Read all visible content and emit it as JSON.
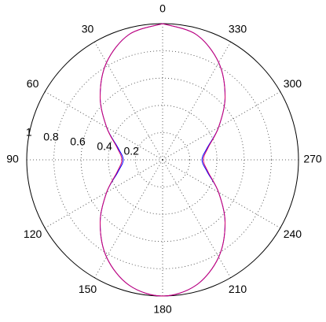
{
  "chart_data": {
    "type": "polar",
    "theta": [
      0,
      15,
      30,
      45,
      60,
      75,
      90,
      105,
      120,
      135,
      150,
      165,
      180,
      195,
      210,
      225,
      240,
      255,
      270,
      285,
      300,
      315,
      330,
      345,
      360
    ],
    "series": [
      {
        "color": "#0000ff",
        "values": [
          1,
          0.953,
          0.825,
          0.65,
          0.475,
          0.34,
          0.29,
          0.34,
          0.475,
          0.65,
          0.825,
          0.953,
          1,
          0.953,
          0.825,
          0.65,
          0.475,
          0.34,
          0.29,
          0.34,
          0.475,
          0.65,
          0.825,
          0.953,
          1
        ]
      },
      {
        "color": "#d4006e",
        "values": [
          1,
          0.953,
          0.825,
          0.65,
          0.475,
          0.347,
          0.3,
          0.347,
          0.475,
          0.65,
          0.825,
          0.953,
          1,
          0.953,
          0.825,
          0.65,
          0.475,
          0.347,
          0.3,
          0.347,
          0.475,
          0.65,
          0.825,
          0.953,
          1
        ]
      }
    ],
    "rlim": [
      0,
      1
    ],
    "rticks": [
      0.2,
      0.4,
      0.6,
      0.8,
      1
    ],
    "thetaticks": [
      0,
      30,
      60,
      90,
      120,
      150,
      180,
      210,
      240,
      270,
      300,
      330
    ],
    "grid": true
  }
}
